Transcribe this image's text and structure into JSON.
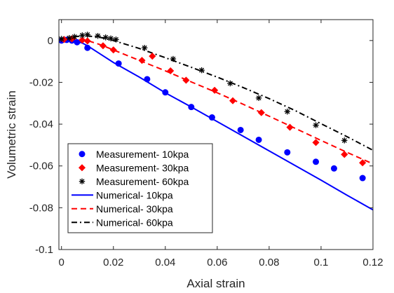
{
  "chart_data": {
    "type": "scatter",
    "title": "",
    "xlabel": "Axial strain",
    "ylabel": "Volumetric strain",
    "xlim": [
      -0.001,
      0.12
    ],
    "ylim": [
      -0.1,
      0.01
    ],
    "xticks": [
      0,
      0.02,
      0.04,
      0.06,
      0.08,
      0.1,
      0.12
    ],
    "xtick_labels": [
      "0",
      "0.02",
      "0.04",
      "0.06",
      "0.08",
      "0.1",
      "0.12"
    ],
    "yticks": [
      0,
      -0.02,
      -0.04,
      -0.06,
      -0.08,
      -0.1
    ],
    "ytick_labels": [
      "0",
      "-0.02",
      "-0.04",
      "-0.06",
      "-0.08",
      "-0.1"
    ],
    "grid": false,
    "legend_position": "bottom-left",
    "series": [
      {
        "name": "Measurement- 10kpa",
        "kind": "markers",
        "marker": "circle",
        "color": "#0000FF",
        "x": [
          0,
          0.002,
          0.004,
          0.006,
          0.01,
          0.022,
          0.033,
          0.04,
          0.05,
          0.058,
          0.069,
          0.076,
          0.087,
          0.098,
          0.105,
          0.116
        ],
        "y": [
          0,
          0.0003,
          0,
          -0.0008,
          -0.0035,
          -0.011,
          -0.0185,
          -0.0248,
          -0.0318,
          -0.0368,
          -0.0428,
          -0.0475,
          -0.0535,
          -0.058,
          -0.0612,
          -0.0658
        ]
      },
      {
        "name": "Measurement- 30kpa",
        "kind": "markers",
        "marker": "diamond",
        "color": "#FF0000",
        "x": [
          0.001,
          0.004,
          0.008,
          0.01,
          0.016,
          0.02,
          0.031,
          0.035,
          0.042,
          0.048,
          0.059,
          0.066,
          0.077,
          0.088,
          0.098,
          0.109,
          0.116
        ],
        "y": [
          0.0005,
          0.0008,
          0.0002,
          -0.0002,
          -0.0025,
          -0.0045,
          -0.0095,
          -0.0075,
          -0.0145,
          -0.019,
          -0.0238,
          -0.0288,
          -0.0345,
          -0.0415,
          -0.0488,
          -0.0545,
          -0.0585
        ]
      },
      {
        "name": "Measurement- 60kpa",
        "kind": "markers",
        "marker": "asterisk",
        "color": "#000000",
        "x": [
          0,
          0.003,
          0.005,
          0.008,
          0.01,
          0.014,
          0.017,
          0.019,
          0.021,
          0.032,
          0.043,
          0.054,
          0.065,
          0.076,
          0.087,
          0.098,
          0.109
        ],
        "y": [
          0.0008,
          0.0012,
          0.0018,
          0.0025,
          0.0028,
          0.0022,
          0.0015,
          0.001,
          0.0005,
          -0.0035,
          -0.0088,
          -0.0142,
          -0.0205,
          -0.0275,
          -0.034,
          -0.0405,
          -0.0478
        ]
      },
      {
        "name": "Numerical- 10kpa",
        "kind": "line",
        "dash": "solid",
        "color": "#0000FF",
        "x": [
          0,
          0.002,
          0.005,
          0.008,
          0.01,
          0.015,
          0.02,
          0.03,
          0.04,
          0.05,
          0.06,
          0.07,
          0.08,
          0.09,
          0.1,
          0.11,
          0.12
        ],
        "y": [
          0,
          0.0003,
          0,
          -0.0012,
          -0.0025,
          -0.0065,
          -0.0105,
          -0.0175,
          -0.025,
          -0.0318,
          -0.0388,
          -0.0458,
          -0.0528,
          -0.0598,
          -0.0668,
          -0.074,
          -0.081
        ]
      },
      {
        "name": "Numerical- 30kpa",
        "kind": "line",
        "dash": "dashed",
        "color": "#FF0000",
        "x": [
          0,
          0.003,
          0.006,
          0.01,
          0.015,
          0.02,
          0.03,
          0.04,
          0.05,
          0.06,
          0.07,
          0.08,
          0.09,
          0.1,
          0.11,
          0.12
        ],
        "y": [
          0.0005,
          0.001,
          0.0008,
          0,
          -0.002,
          -0.0045,
          -0.0095,
          -0.0145,
          -0.0198,
          -0.025,
          -0.0305,
          -0.0362,
          -0.042,
          -0.0478,
          -0.0535,
          -0.059
        ]
      },
      {
        "name": "Numerical- 60kpa",
        "kind": "line",
        "dash": "dashdot",
        "color": "#000000",
        "x": [
          0,
          0.003,
          0.006,
          0.01,
          0.015,
          0.02,
          0.03,
          0.04,
          0.05,
          0.06,
          0.07,
          0.08,
          0.09,
          0.1,
          0.11,
          0.12
        ],
        "y": [
          0.0008,
          0.0015,
          0.002,
          0.0022,
          0.0015,
          0,
          -0.0038,
          -0.0082,
          -0.0128,
          -0.0175,
          -0.0225,
          -0.0278,
          -0.0335,
          -0.0398,
          -0.046,
          -0.0525
        ]
      }
    ]
  }
}
